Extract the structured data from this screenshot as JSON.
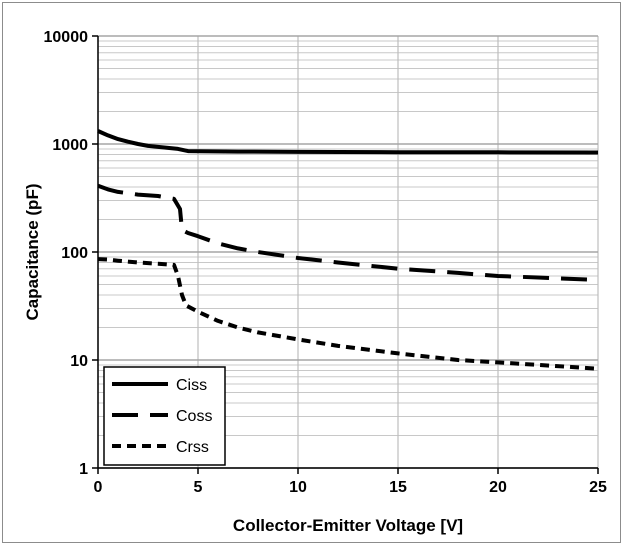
{
  "chart_data": {
    "type": "line",
    "title": "",
    "xlabel": "Collector-Emitter Voltage [V]",
    "ylabel": "Capacitance  (pF)",
    "xlim": [
      0,
      25
    ],
    "ylim": [
      1,
      10000
    ],
    "y_scale": "log",
    "grid": true,
    "legend_position": "bottom-left",
    "x_ticks": [
      "0",
      "5",
      "10",
      "15",
      "20",
      "25"
    ],
    "x_tick_values": [
      0,
      5,
      10,
      15,
      20,
      25
    ],
    "y_ticks": [
      "1",
      "10",
      "100",
      "1000",
      "10000"
    ],
    "y_tick_values": [
      1,
      10,
      100,
      1000,
      10000
    ],
    "series": [
      {
        "name": "Ciss",
        "dash": "solid",
        "x": [
          0,
          0.5,
          1,
          1.5,
          2,
          2.5,
          3,
          3.5,
          4,
          4.5,
          5,
          7,
          10,
          15,
          20,
          25
        ],
        "y": [
          1320,
          1200,
          1110,
          1050,
          1000,
          960,
          940,
          920,
          900,
          860,
          855,
          850,
          845,
          840,
          838,
          835
        ]
      },
      {
        "name": "Coss",
        "dash": "long-dash",
        "x": [
          0,
          0.5,
          1,
          2,
          3,
          3.8,
          4.1,
          4.2,
          4.5,
          5,
          6,
          7,
          8,
          10,
          12,
          15,
          18,
          20,
          22,
          25
        ],
        "y": [
          410,
          380,
          360,
          340,
          330,
          310,
          250,
          160,
          150,
          140,
          120,
          108,
          100,
          88,
          80,
          70,
          64,
          60,
          58,
          55
        ]
      },
      {
        "name": "Crss",
        "dash": "short-dash",
        "x": [
          0,
          0.5,
          1,
          2,
          3,
          3.8,
          4,
          4.2,
          4.4,
          5,
          6,
          7,
          8,
          10,
          12,
          15,
          18,
          20,
          22,
          25
        ],
        "y": [
          86,
          85,
          83,
          80,
          78,
          76,
          60,
          40,
          32,
          28,
          23,
          20,
          18,
          15.5,
          13.5,
          11.5,
          10,
          9.5,
          9,
          8.3
        ]
      }
    ]
  }
}
